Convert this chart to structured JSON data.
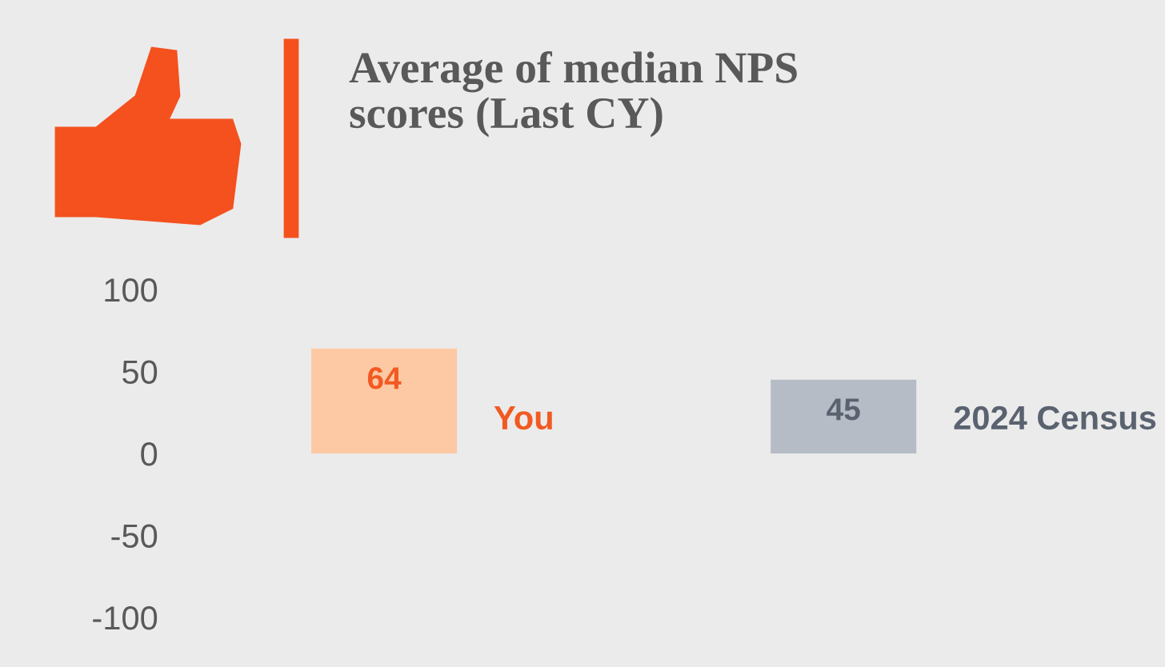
{
  "chart_data": {
    "type": "bar",
    "title": "Average of median NPS\nscores (Last CY)",
    "categories": [
      "You",
      "2024 Census"
    ],
    "values": [
      64,
      45
    ],
    "colors": [
      "#fdc9a4",
      "#b5bcc5"
    ],
    "ylim": [
      -100,
      100
    ],
    "yticks": [
      -100,
      -50,
      0,
      50,
      100
    ],
    "grid": false,
    "data_labels": true
  }
}
